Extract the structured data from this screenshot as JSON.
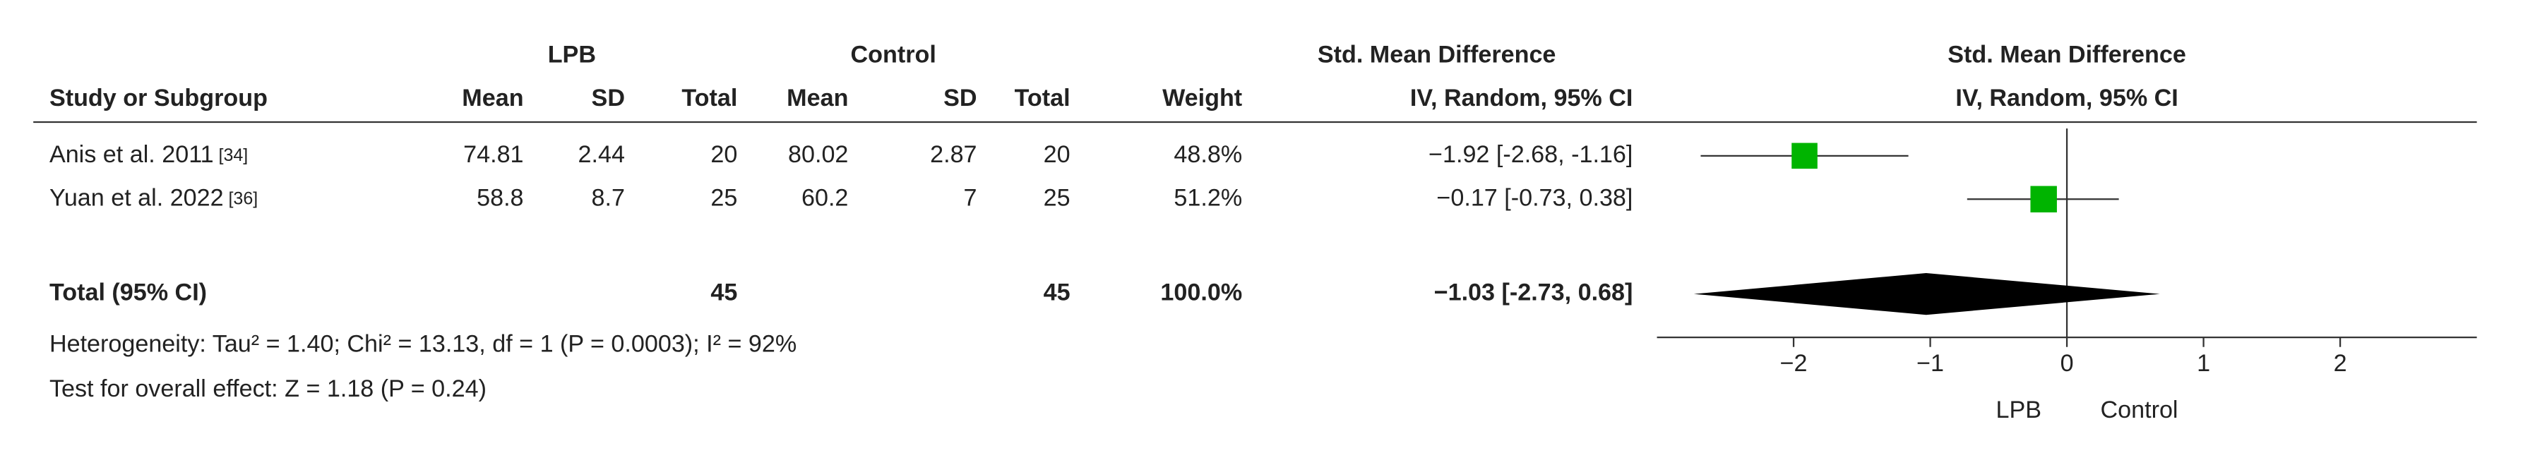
{
  "chart_data": {
    "type": "forest",
    "group_headers": {
      "experimental": "LPB",
      "control": "Control",
      "effect": "Std. Mean Difference",
      "plot": "Std. Mean Difference"
    },
    "column_headers": [
      "Study or Subgroup",
      "Mean",
      "SD",
      "Total",
      "Mean",
      "SD",
      "Total",
      "Weight",
      "IV, Random, 95% CI"
    ],
    "plot_subtitle": "IV, Random, 95% CI",
    "studies": [
      {
        "name": "Anis et al. 2011",
        "ref": "[34]",
        "exp_mean": 74.81,
        "exp_sd": 2.44,
        "exp_total": 20,
        "ctrl_mean": 80.02,
        "ctrl_sd": 2.87,
        "ctrl_total": 20,
        "weight": 48.8,
        "weight_label": "48.8%",
        "effect": -1.92,
        "ci": [
          -2.68,
          -1.16
        ],
        "effect_label": "−1.92 [-2.68, -1.16]"
      },
      {
        "name": "Yuan et al. 2022",
        "ref": "[36]",
        "exp_mean": 58.8,
        "exp_sd": 8.7,
        "exp_total": 25,
        "ctrl_mean": 60.2,
        "ctrl_sd": 7,
        "ctrl_total": 25,
        "weight": 51.2,
        "weight_label": "51.2%",
        "effect": -0.17,
        "ci": [
          -0.73,
          0.38
        ],
        "effect_label": "−0.17 [-0.73, 0.38]"
      }
    ],
    "total": {
      "name": "Total (95% CI)",
      "exp_total": 45,
      "ctrl_total": 45,
      "weight": 100,
      "weight_label": "100.0%",
      "effect": -1.03,
      "ci": [
        -2.73,
        0.68
      ],
      "effect_label": "−1.03 [-2.73, 0.68]"
    },
    "heterogeneity": "Heterogeneity: Tau² = 1.40; Chi² = 13.13, df = 1 (P = 0.0003); I² = 92%",
    "overall_effect": "Test for overall effect: Z = 1.18 (P = 0.24)",
    "xlim": [
      -3,
      3
    ],
    "xticks": [
      {
        "value": -2,
        "label": "−2"
      },
      {
        "value": -1,
        "label": "−1"
      },
      0,
      1,
      2
    ],
    "favours": [
      "LPB",
      "Control"
    ],
    "marker_color": "#00b400",
    "diamond_color": "#000000"
  }
}
